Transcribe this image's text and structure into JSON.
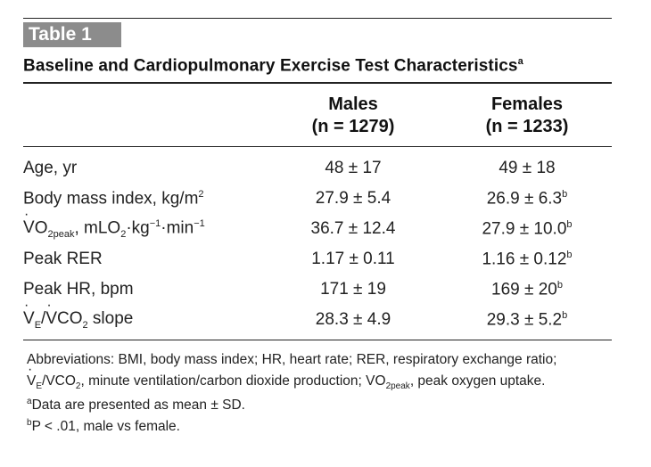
{
  "table": {
    "label": "Table 1",
    "title": "Baseline and Cardiopulmonary Exercise Test Characteristics",
    "title_footnote": "a",
    "columns": [
      {
        "name": "Males",
        "n": "(n = 1279)"
      },
      {
        "name": "Females",
        "n": "(n = 1233)"
      }
    ],
    "rows": [
      {
        "label": "Age, yr",
        "males": "48 ± 17",
        "females": "49 ± 18",
        "females_mark": ""
      },
      {
        "label": "Body mass index, kg/m",
        "label_sup": "2",
        "males": "27.9 ± 5.4",
        "females": "26.9 ± 6.3",
        "females_mark": "b"
      },
      {
        "label_pre": "V",
        "label_sub": "O",
        "label_sub2": "2peak",
        "label": ", mLO",
        "label_sub3": "2",
        "label_post": "·kg",
        "label_sup1": "−1",
        "label_post2": "·min",
        "label_sup2": "−1",
        "males": "36.7 ± 12.4",
        "females": "27.9 ± 10.0",
        "females_mark": "b"
      },
      {
        "label": "Peak RER",
        "males": "1.17 ± 0.11",
        "females": "1.16 ± 0.12",
        "females_mark": "b"
      },
      {
        "label": "Peak HR, bpm",
        "males": "171 ± 19",
        "females": "169 ± 20",
        "females_mark": "b"
      },
      {
        "label_v1": "V",
        "label_sub_e": "E",
        "label_slash": "/",
        "label_v2": "V",
        "label_co": "CO",
        "label_sub_2": "2",
        "label_end": " slope",
        "males": "28.3 ± 4.9",
        "females": "29.3 ± 5.2",
        "females_mark": "b"
      }
    ],
    "notes": {
      "abbrev_line1": "Abbreviations: BMI, body mass index; HR, heart rate; RER, respiratory exchange ratio;",
      "abbrev_line2_a": "V",
      "abbrev_line2_b": "E",
      "abbrev_line2_c": "/V",
      "abbrev_line2_d": "CO",
      "abbrev_line2_e": "2",
      "abbrev_line2_f": ", minute ventilation/carbon dioxide production; V",
      "abbrev_line2_g": "O",
      "abbrev_line2_h": "2peak",
      "abbrev_line2_i": ", peak oxygen uptake.",
      "note_a_mark": "a",
      "note_a": "Data are presented as mean ± SD.",
      "note_b_mark": "b",
      "note_b": "P < .01, male vs female."
    }
  }
}
